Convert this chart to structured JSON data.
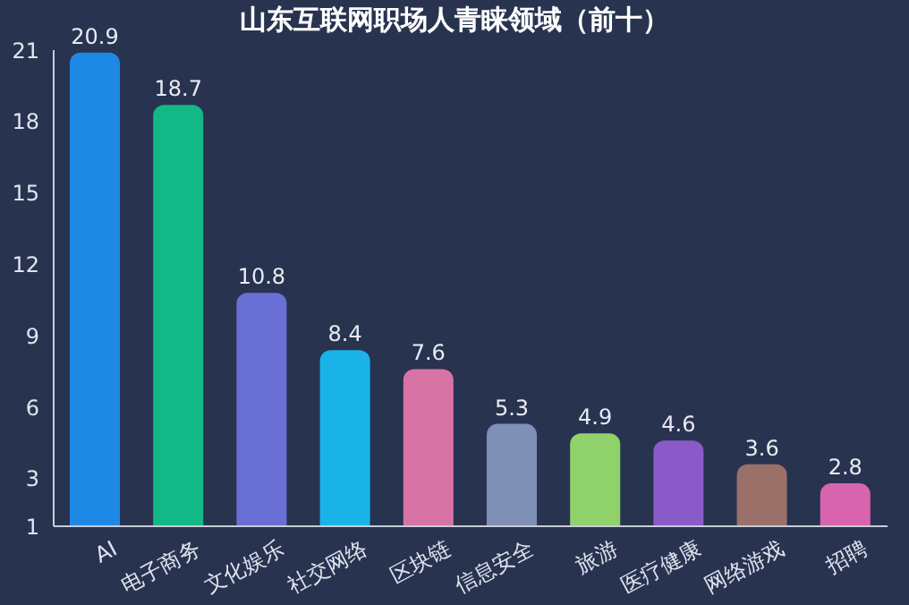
{
  "chart_data": {
    "type": "bar",
    "title": "山东互联网职场人青睐领域（前十）",
    "categories": [
      "AI",
      "电子商务",
      "文化娱乐",
      "社交网络",
      "区块链",
      "信息安全",
      "旅游",
      "医疗健康",
      "网络游戏",
      "招聘"
    ],
    "values": [
      20.9,
      18.7,
      10.8,
      8.4,
      7.6,
      5.3,
      4.9,
      4.6,
      3.6,
      2.8
    ],
    "colors": [
      "#1e88e5",
      "#12b886",
      "#6a6fd6",
      "#1ab3e8",
      "#d873a6",
      "#7f8fb5",
      "#8fd16b",
      "#8a5ac8",
      "#9a7068",
      "#d864b0"
    ],
    "ylim": [
      1,
      21
    ],
    "yticks": [
      1,
      3,
      6,
      9,
      12,
      15,
      18,
      21
    ],
    "grid": false,
    "data_labels": true
  }
}
